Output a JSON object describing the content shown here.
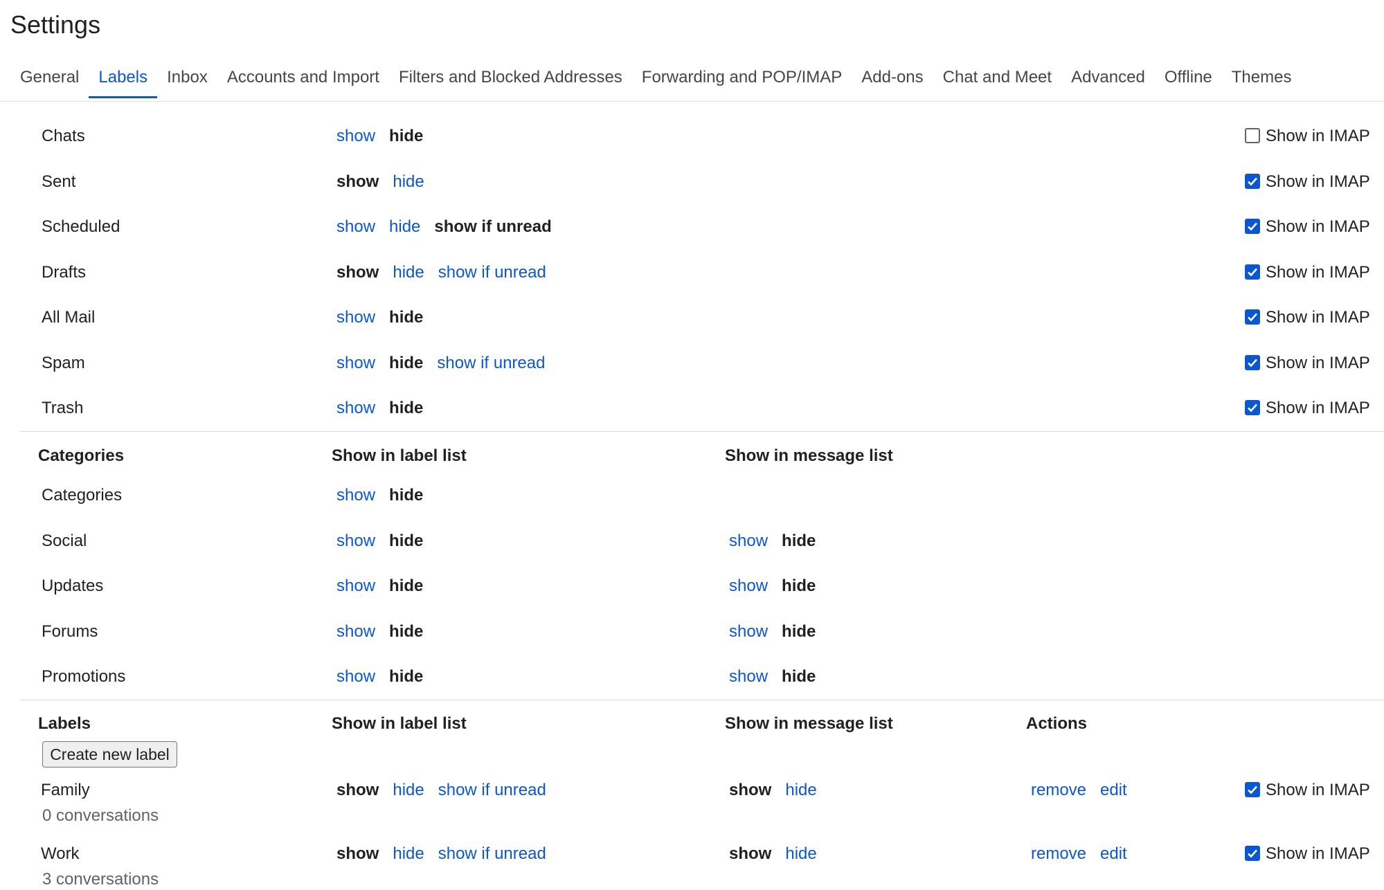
{
  "header": {
    "title": "Settings"
  },
  "tabs": {
    "items": [
      "General",
      "Labels",
      "Inbox",
      "Accounts and Import",
      "Filters and Blocked Addresses",
      "Forwarding and POP/IMAP",
      "Add-ons",
      "Chat and Meet",
      "Advanced",
      "Offline",
      "Themes"
    ],
    "active": 1
  },
  "system_labels": {
    "rows": [
      {
        "name": "Chats",
        "label_list": [
          {
            "text": "show",
            "active": false
          },
          {
            "text": "hide",
            "active": true
          }
        ],
        "imap": {
          "label": "Show in IMAP",
          "checked": false
        }
      },
      {
        "name": "Sent",
        "label_list": [
          {
            "text": "show",
            "active": true
          },
          {
            "text": "hide",
            "active": false
          }
        ],
        "imap": {
          "label": "Show in IMAP",
          "checked": true
        }
      },
      {
        "name": "Scheduled",
        "label_list": [
          {
            "text": "show",
            "active": false
          },
          {
            "text": "hide",
            "active": false
          },
          {
            "text": "show if unread",
            "active": true
          }
        ],
        "imap": {
          "label": "Show in IMAP",
          "checked": true
        }
      },
      {
        "name": "Drafts",
        "label_list": [
          {
            "text": "show",
            "active": true
          },
          {
            "text": "hide",
            "active": false
          },
          {
            "text": "show if unread",
            "active": false
          }
        ],
        "imap": {
          "label": "Show in IMAP",
          "checked": true
        }
      },
      {
        "name": "All Mail",
        "label_list": [
          {
            "text": "show",
            "active": false
          },
          {
            "text": "hide",
            "active": true
          }
        ],
        "imap": {
          "label": "Show in IMAP",
          "checked": true
        }
      },
      {
        "name": "Spam",
        "label_list": [
          {
            "text": "show",
            "active": false
          },
          {
            "text": "hide",
            "active": true
          },
          {
            "text": "show if unread",
            "active": false
          }
        ],
        "imap": {
          "label": "Show in IMAP",
          "checked": true
        }
      },
      {
        "name": "Trash",
        "label_list": [
          {
            "text": "show",
            "active": false
          },
          {
            "text": "hide",
            "active": true
          }
        ],
        "imap": {
          "label": "Show in IMAP",
          "checked": true
        }
      }
    ]
  },
  "categories": {
    "headers": [
      "Categories",
      "Show in label list",
      "Show in message list"
    ],
    "rows": [
      {
        "name": "Categories",
        "label_list": [
          {
            "text": "show",
            "active": false
          },
          {
            "text": "hide",
            "active": true
          }
        ]
      },
      {
        "name": "Social",
        "label_list": [
          {
            "text": "show",
            "active": false
          },
          {
            "text": "hide",
            "active": true
          }
        ],
        "message_list": [
          {
            "text": "show",
            "active": false
          },
          {
            "text": "hide",
            "active": true
          }
        ]
      },
      {
        "name": "Updates",
        "label_list": [
          {
            "text": "show",
            "active": false
          },
          {
            "text": "hide",
            "active": true
          }
        ],
        "message_list": [
          {
            "text": "show",
            "active": false
          },
          {
            "text": "hide",
            "active": true
          }
        ]
      },
      {
        "name": "Forums",
        "label_list": [
          {
            "text": "show",
            "active": false
          },
          {
            "text": "hide",
            "active": true
          }
        ],
        "message_list": [
          {
            "text": "show",
            "active": false
          },
          {
            "text": "hide",
            "active": true
          }
        ]
      },
      {
        "name": "Promotions",
        "label_list": [
          {
            "text": "show",
            "active": false
          },
          {
            "text": "hide",
            "active": true
          }
        ],
        "message_list": [
          {
            "text": "show",
            "active": false
          },
          {
            "text": "hide",
            "active": true
          }
        ]
      }
    ]
  },
  "labels": {
    "headers": [
      "Labels",
      "Show in label list",
      "Show in message list",
      "Actions"
    ],
    "button": "Create new label",
    "rows": [
      {
        "name": "Family",
        "count": "0 conversations",
        "label_list": [
          {
            "text": "show",
            "active": true
          },
          {
            "text": "hide",
            "active": false
          },
          {
            "text": "show if unread",
            "active": false
          }
        ],
        "message_list": [
          {
            "text": "show",
            "active": true
          },
          {
            "text": "hide",
            "active": false
          }
        ],
        "actions": [
          "remove",
          "edit"
        ],
        "imap": {
          "label": "Show in IMAP",
          "checked": true
        }
      },
      {
        "name": "Work",
        "count": "3 conversations",
        "label_list": [
          {
            "text": "show",
            "active": true
          },
          {
            "text": "hide",
            "active": false
          },
          {
            "text": "show if unread",
            "active": false
          }
        ],
        "message_list": [
          {
            "text": "show",
            "active": true
          },
          {
            "text": "hide",
            "active": false
          }
        ],
        "actions": [
          "remove",
          "edit"
        ],
        "imap": {
          "label": "Show in IMAP",
          "checked": true
        }
      }
    ]
  }
}
